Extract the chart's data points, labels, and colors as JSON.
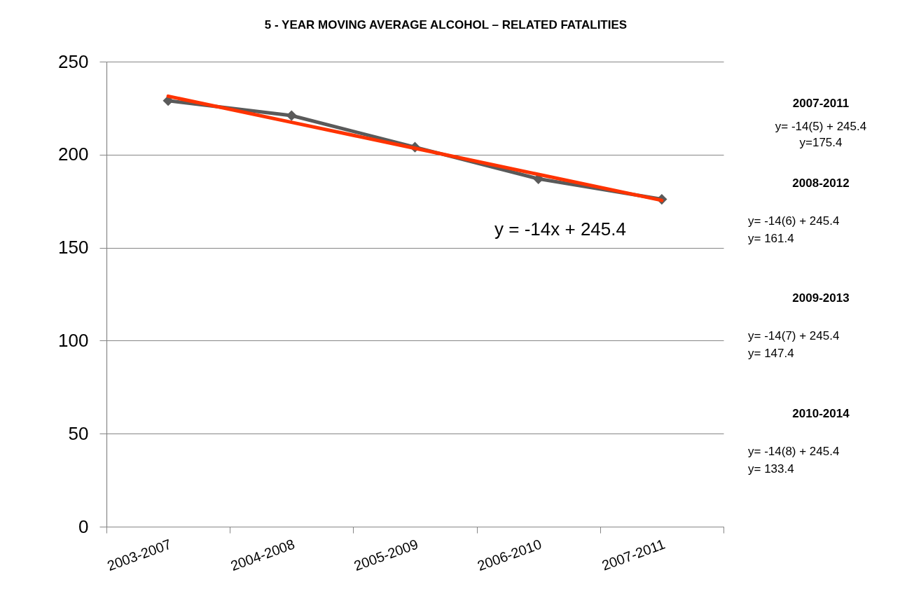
{
  "chart_data": {
    "type": "line",
    "title": "5 - YEAR MOVING AVERAGE ALCOHOL – RELATED FATALITIES",
    "categories": [
      "2003-2007",
      "2004-2008",
      "2005-2009",
      "2006-2010",
      "2007-2011"
    ],
    "series": [
      {
        "color": "#5a5a5a",
        "marker": "diamond",
        "values": [
          229,
          221,
          204,
          187,
          176
        ]
      },
      {
        "type": "line",
        "color": "#ff3300",
        "marker": "none",
        "values": [
          231.4,
          217.4,
          203.4,
          189.4,
          175.4
        ]
      }
    ],
    "ylim": [
      0,
      250
    ],
    "yticks": [
      0,
      50,
      100,
      150,
      200,
      250
    ],
    "grid": "y",
    "annotations": [
      "y = -14x + 245.4",
      "2007-2011",
      "y= -14(5) + 245.4",
      "y=175.4",
      "2008-2012",
      "y= -14(6) + 245.4",
      "y= 161.4",
      "2009-2013",
      "y= -14(7) + 245.4",
      "y= 147.4",
      "2010-2014",
      "y= -14(8) + 245.4",
      "y= 133.4"
    ]
  }
}
